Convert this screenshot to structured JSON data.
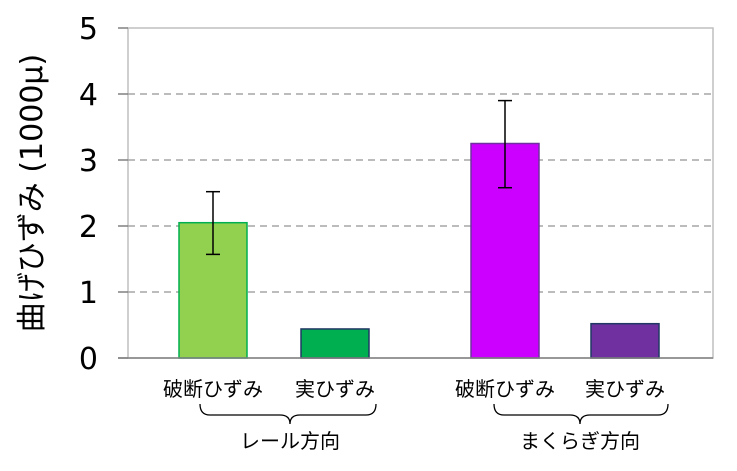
{
  "chart_data": {
    "type": "bar",
    "ylabel": "曲げひずみ (1000μ)",
    "ylim": [
      0,
      5
    ],
    "yticks": [
      0,
      1,
      2,
      3,
      4,
      5
    ],
    "grid": "horizontal-dashed",
    "groups": [
      {
        "label": "レール方向",
        "bars": [
          {
            "category": "破断ひずみ",
            "value": 2.05,
            "error_low": 1.57,
            "error_high": 2.52,
            "fill": "#92d050",
            "stroke": "#00b050"
          },
          {
            "category": "実ひずみ",
            "value": 0.44,
            "fill": "#00b050",
            "stroke": "#1f3864"
          }
        ]
      },
      {
        "label": "まくらぎ方向",
        "bars": [
          {
            "category": "破断ひずみ",
            "value": 3.25,
            "error_low": 2.58,
            "error_high": 3.9,
            "fill": "#cc00ff",
            "stroke": "#7030a0"
          },
          {
            "category": "実ひずみ",
            "value": 0.52,
            "fill": "#7030a0",
            "stroke": "#1f3864"
          }
        ]
      }
    ]
  }
}
